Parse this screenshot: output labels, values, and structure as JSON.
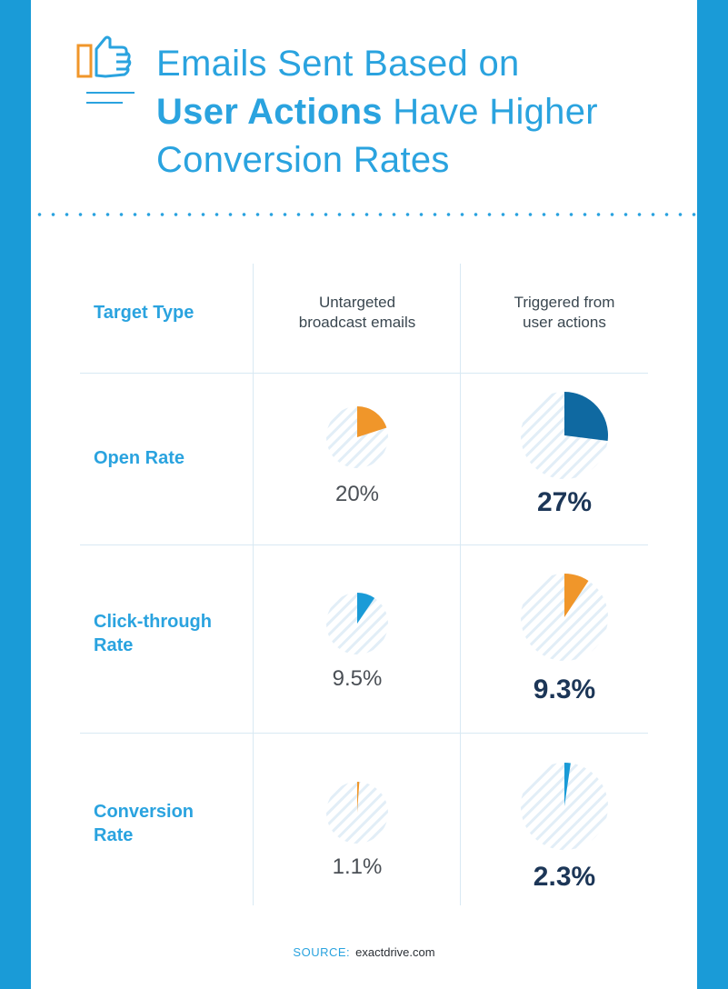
{
  "title": {
    "line1": "Emails Sent Based on",
    "bold": "User Actions",
    "line2_rest": " Have Higher",
    "line3": "Conversion Rates"
  },
  "chart_data": {
    "type": "table",
    "title": "Emails Sent Based on User Actions Have Higher Conversion Rates",
    "corner_header": "Target Type",
    "columns": [
      {
        "line1": "Untargeted",
        "line2": "broadcast emails"
      },
      {
        "line1": "Triggered from",
        "line2": "user actions"
      }
    ],
    "rows": [
      {
        "label_lines": [
          "Open Rate"
        ],
        "cells": [
          {
            "value": 20,
            "display": "20%",
            "color": "#f0962a"
          },
          {
            "value": 27,
            "display": "27%",
            "color": "#0f69a1"
          }
        ]
      },
      {
        "label_lines": [
          "Click-through",
          "Rate"
        ],
        "cells": [
          {
            "value": 9.5,
            "display": "9.5%",
            "color": "#1a9bd7"
          },
          {
            "value": 9.3,
            "display": "9.3%",
            "color": "#f0962a"
          }
        ]
      },
      {
        "label_lines": [
          "Conversion",
          "Rate"
        ],
        "cells": [
          {
            "value": 1.1,
            "display": "1.1%",
            "color": "#f0962a"
          },
          {
            "value": 2.3,
            "display": "2.3%",
            "color": "#1a9bd7"
          }
        ]
      }
    ]
  },
  "source": {
    "label": "SOURCE:",
    "value": "exactdrive.com"
  },
  "colors": {
    "accent": "#2aa3df",
    "side_bar": "#1a9bd7",
    "orange": "#f0962a",
    "dark_blue": "#0f69a1",
    "navy": "#1c3657"
  }
}
